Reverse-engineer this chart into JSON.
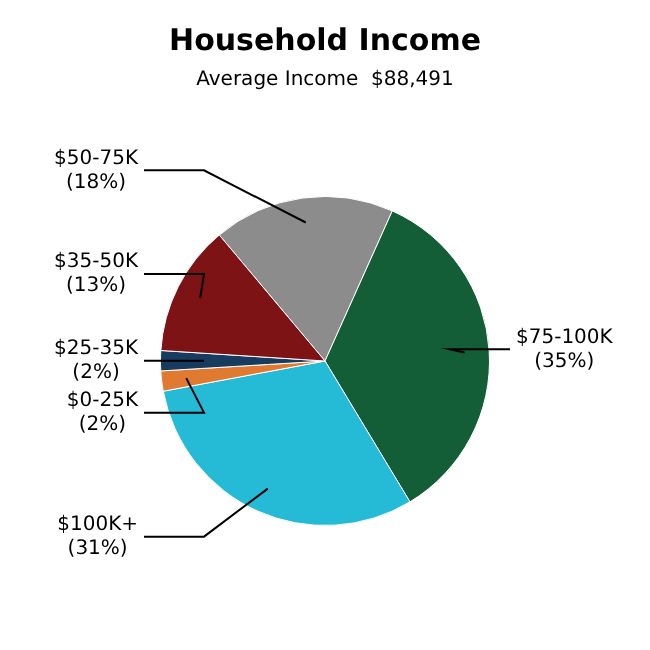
{
  "chart_data": {
    "type": "pie",
    "title": "Household Income",
    "subtitle": "Average Income  $88,491",
    "categories": [
      "$50-75K",
      "$75-100K",
      "$100K+",
      "$0-25K",
      "$25-35K",
      "$35-50K"
    ],
    "values": [
      18,
      35,
      31,
      2,
      2,
      13
    ],
    "value_labels": [
      "(18%)",
      "(35%)",
      "(31%)",
      "(2%)",
      "(2%)",
      "(13%)"
    ],
    "colors": [
      "#8c8c8c",
      "#135e36",
      "#25bad6",
      "#e07a30",
      "#183c60",
      "#7e1316"
    ],
    "legend": false
  }
}
